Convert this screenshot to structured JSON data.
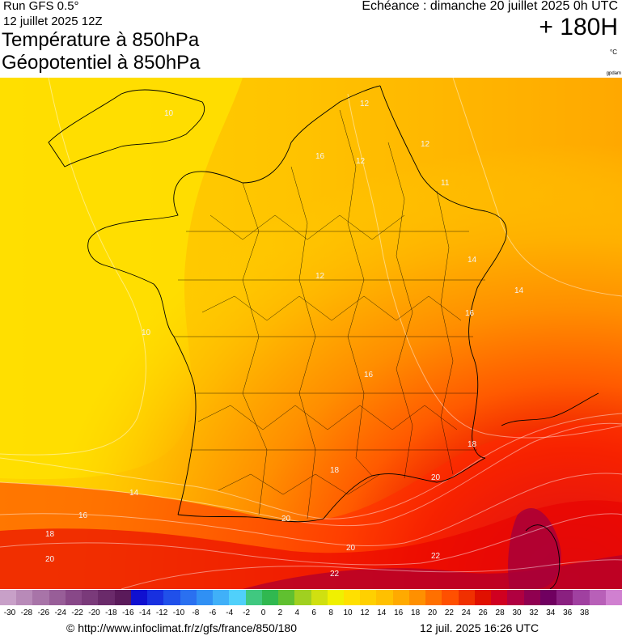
{
  "header": {
    "run": "Run GFS 0.5°",
    "run_date": "12 juillet 2025 12Z",
    "title_line1": "Température à 850hPa",
    "title_line2": "Géopotentiel à 850hPa",
    "echeance": "Echéance : dimanche 20 juillet 2025 0h UTC",
    "forecast_hour": "+ 180H",
    "unit": "°C",
    "source_tag": "gpdam"
  },
  "map": {
    "contour_labels": [
      "10",
      "12",
      "12",
      "11",
      "12",
      "14",
      "10",
      "12",
      "14",
      "16",
      "18",
      "20",
      "22",
      "22",
      "20",
      "14",
      "16",
      "18",
      "20",
      "16",
      "18",
      "20",
      "16"
    ]
  },
  "colorbar": {
    "ticks": [
      "-30",
      "-28",
      "-26",
      "-24",
      "-22",
      "-20",
      "-18",
      "-16",
      "-14",
      "-12",
      "-10",
      "-8",
      "-6",
      "-4",
      "-2",
      "0",
      "2",
      "4",
      "6",
      "8",
      "10",
      "12",
      "14",
      "16",
      "18",
      "20",
      "22",
      "24",
      "26",
      "28",
      "30",
      "32",
      "34",
      "36",
      "38"
    ],
    "colors": [
      "#c8a0c8",
      "#b88ab8",
      "#a874a8",
      "#985e98",
      "#884888",
      "#7a3a7a",
      "#6a2a6a",
      "#5a1a5a",
      "#1010d0",
      "#1830e0",
      "#2050ea",
      "#2a70f0",
      "#3090f4",
      "#40b0f8",
      "#50d0fa",
      "#40c880",
      "#30b850",
      "#60c030",
      "#a0d020",
      "#d0e010",
      "#f0f000",
      "#ffe000",
      "#ffd000",
      "#ffc000",
      "#ffaa00",
      "#ff9000",
      "#ff7000",
      "#ff5000",
      "#f03000",
      "#e01000",
      "#d00020",
      "#b00040",
      "#900050",
      "#700060",
      "#8a2080",
      "#a040a0",
      "#b860b8",
      "#d080d0"
    ]
  },
  "footer": {
    "url": "© http://www.infoclimat.fr/z/gfs/france/850/180",
    "timestamp": "12 juil. 2025 16:26 UTC"
  }
}
